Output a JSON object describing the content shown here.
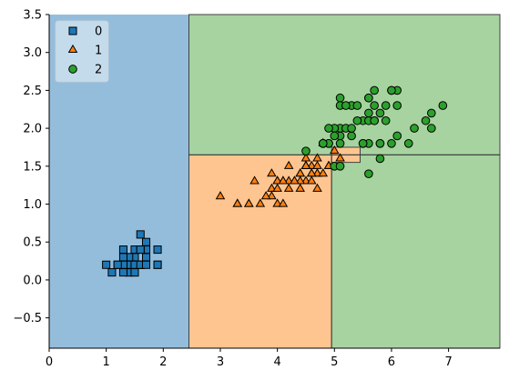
{
  "chart_data": {
    "type": "scatter",
    "title": "",
    "xlabel": "",
    "ylabel": "",
    "xlim": [
      0,
      7.9
    ],
    "ylim": [
      -0.9,
      3.5
    ],
    "x_ticks": [
      0,
      1,
      2,
      3,
      4,
      5,
      6,
      7
    ],
    "x_tick_labels": [
      "0",
      "1",
      "2",
      "3",
      "4",
      "5",
      "6",
      "7"
    ],
    "y_ticks": [
      -0.5,
      0.0,
      0.5,
      1.0,
      1.5,
      2.0,
      2.5,
      3.0,
      3.5
    ],
    "y_tick_labels": [
      "−0.5",
      "0.0",
      "0.5",
      "1.0",
      "1.5",
      "2.0",
      "2.5",
      "3.0",
      "3.5"
    ],
    "grid": false,
    "legend_position": "top-left",
    "decision_regions": [
      {
        "class": "0",
        "x_range": [
          0,
          2.45
        ],
        "y_range": [
          -0.9,
          3.5
        ],
        "color": "#94bddc"
      },
      {
        "class": "1",
        "x_range": [
          2.45,
          4.95
        ],
        "y_range": [
          -0.9,
          1.65
        ],
        "color": "#fec591"
      },
      {
        "class": "2",
        "x_range": [
          2.45,
          7.9
        ],
        "y_range": [
          1.65,
          3.5
        ],
        "color": "#a7d3a0"
      },
      {
        "class": "2",
        "x_range": [
          4.95,
          7.9
        ],
        "y_range": [
          -0.9,
          1.65
        ],
        "color": "#a7d3a0"
      },
      {
        "class": "1",
        "x_range": [
          4.95,
          5.45
        ],
        "y_range": [
          1.55,
          1.75
        ],
        "color": "#fec591"
      }
    ],
    "series": [
      {
        "name": "0",
        "marker": "square",
        "color": "#1f77b4",
        "points": [
          [
            1.4,
            0.2
          ],
          [
            1.3,
            0.2
          ],
          [
            1.5,
            0.2
          ],
          [
            1.4,
            0.2
          ],
          [
            1.7,
            0.4
          ],
          [
            1.4,
            0.3
          ],
          [
            1.5,
            0.2
          ],
          [
            1.5,
            0.1
          ],
          [
            1.6,
            0.2
          ],
          [
            1.4,
            0.1
          ],
          [
            1.1,
            0.1
          ],
          [
            1.2,
            0.2
          ],
          [
            1.5,
            0.4
          ],
          [
            1.3,
            0.4
          ],
          [
            1.7,
            0.3
          ],
          [
            1.5,
            0.3
          ],
          [
            1.9,
            0.2
          ],
          [
            1.6,
            0.2
          ],
          [
            1.6,
            0.4
          ],
          [
            1.0,
            0.2
          ],
          [
            1.7,
            0.5
          ],
          [
            1.9,
            0.2
          ],
          [
            1.6,
            0.4
          ],
          [
            1.6,
            0.6
          ],
          [
            1.4,
            0.3
          ],
          [
            1.3,
            0.3
          ],
          [
            1.3,
            0.2
          ],
          [
            1.2,
            0.2
          ],
          [
            1.5,
            0.2
          ],
          [
            1.4,
            0.1
          ],
          [
            1.9,
            0.4
          ],
          [
            1.6,
            0.2
          ],
          [
            1.5,
            0.1
          ],
          [
            1.3,
            0.1
          ],
          [
            1.7,
            0.2
          ]
        ]
      },
      {
        "name": "1",
        "marker": "triangle",
        "color": "#ff7f0e",
        "points": [
          [
            4.7,
            1.4
          ],
          [
            4.5,
            1.5
          ],
          [
            4.9,
            1.5
          ],
          [
            4.0,
            1.3
          ],
          [
            4.6,
            1.5
          ],
          [
            4.5,
            1.3
          ],
          [
            4.7,
            1.6
          ],
          [
            3.3,
            1.0
          ],
          [
            4.6,
            1.3
          ],
          [
            3.9,
            1.4
          ],
          [
            3.5,
            1.0
          ],
          [
            4.2,
            1.5
          ],
          [
            4.0,
            1.0
          ],
          [
            4.7,
            1.4
          ],
          [
            3.6,
            1.3
          ],
          [
            4.4,
            1.4
          ],
          [
            4.5,
            1.5
          ],
          [
            4.1,
            1.0
          ],
          [
            4.5,
            1.5
          ],
          [
            3.9,
            1.1
          ],
          [
            4.8,
            1.8
          ],
          [
            4.0,
            1.3
          ],
          [
            4.9,
            1.5
          ],
          [
            4.7,
            1.2
          ],
          [
            4.3,
            1.3
          ],
          [
            4.4,
            1.4
          ],
          [
            4.8,
            1.4
          ],
          [
            5.0,
            1.7
          ],
          [
            4.5,
            1.5
          ],
          [
            3.5,
            1.0
          ],
          [
            3.8,
            1.1
          ],
          [
            3.7,
            1.0
          ],
          [
            3.9,
            1.2
          ],
          [
            5.1,
            1.6
          ],
          [
            4.5,
            1.5
          ],
          [
            4.5,
            1.6
          ],
          [
            4.7,
            1.5
          ],
          [
            4.4,
            1.3
          ],
          [
            4.1,
            1.3
          ],
          [
            4.0,
            1.3
          ],
          [
            4.4,
            1.2
          ],
          [
            4.6,
            1.4
          ],
          [
            4.0,
            1.2
          ],
          [
            3.3,
            1.0
          ],
          [
            4.2,
            1.3
          ],
          [
            4.2,
            1.2
          ],
          [
            4.3,
            1.3
          ],
          [
            3.0,
            1.1
          ],
          [
            4.1,
            1.3
          ],
          [
            4.6,
            1.4
          ]
        ]
      },
      {
        "name": "2",
        "marker": "circle",
        "color": "#2ca02c",
        "points": [
          [
            6.0,
            2.5
          ],
          [
            5.1,
            1.9
          ],
          [
            5.9,
            2.1
          ],
          [
            5.6,
            1.8
          ],
          [
            5.8,
            2.2
          ],
          [
            6.6,
            2.1
          ],
          [
            4.5,
            1.7
          ],
          [
            6.3,
            1.8
          ],
          [
            5.8,
            1.8
          ],
          [
            6.1,
            2.5
          ],
          [
            5.1,
            2.0
          ],
          [
            5.3,
            1.9
          ],
          [
            5.5,
            2.1
          ],
          [
            5.0,
            2.0
          ],
          [
            5.1,
            2.4
          ],
          [
            5.3,
            2.3
          ],
          [
            5.5,
            1.8
          ],
          [
            6.7,
            2.2
          ],
          [
            6.9,
            2.3
          ],
          [
            5.0,
            1.5
          ],
          [
            5.7,
            2.3
          ],
          [
            4.9,
            2.0
          ],
          [
            6.7,
            2.0
          ],
          [
            4.9,
            1.8
          ],
          [
            5.7,
            2.1
          ],
          [
            6.0,
            1.8
          ],
          [
            4.8,
            1.8
          ],
          [
            4.9,
            1.8
          ],
          [
            5.6,
            2.1
          ],
          [
            5.8,
            1.6
          ],
          [
            6.1,
            1.9
          ],
          [
            6.4,
            2.0
          ],
          [
            5.6,
            2.2
          ],
          [
            5.1,
            1.5
          ],
          [
            5.6,
            1.4
          ],
          [
            6.1,
            2.3
          ],
          [
            5.6,
            2.4
          ],
          [
            5.5,
            1.8
          ],
          [
            4.8,
            1.8
          ],
          [
            5.4,
            2.1
          ],
          [
            5.6,
            2.4
          ],
          [
            5.1,
            2.3
          ],
          [
            5.9,
            2.3
          ],
          [
            5.7,
            2.5
          ],
          [
            5.2,
            2.3
          ],
          [
            5.0,
            1.9
          ],
          [
            5.2,
            2.0
          ],
          [
            5.4,
            2.3
          ],
          [
            5.1,
            1.8
          ],
          [
            4.8,
            1.8
          ],
          [
            5.3,
            2.0
          ],
          [
            6.0,
            2.5
          ],
          [
            5.7,
            2.1
          ],
          [
            5.8,
            1.8
          ]
        ]
      }
    ]
  }
}
